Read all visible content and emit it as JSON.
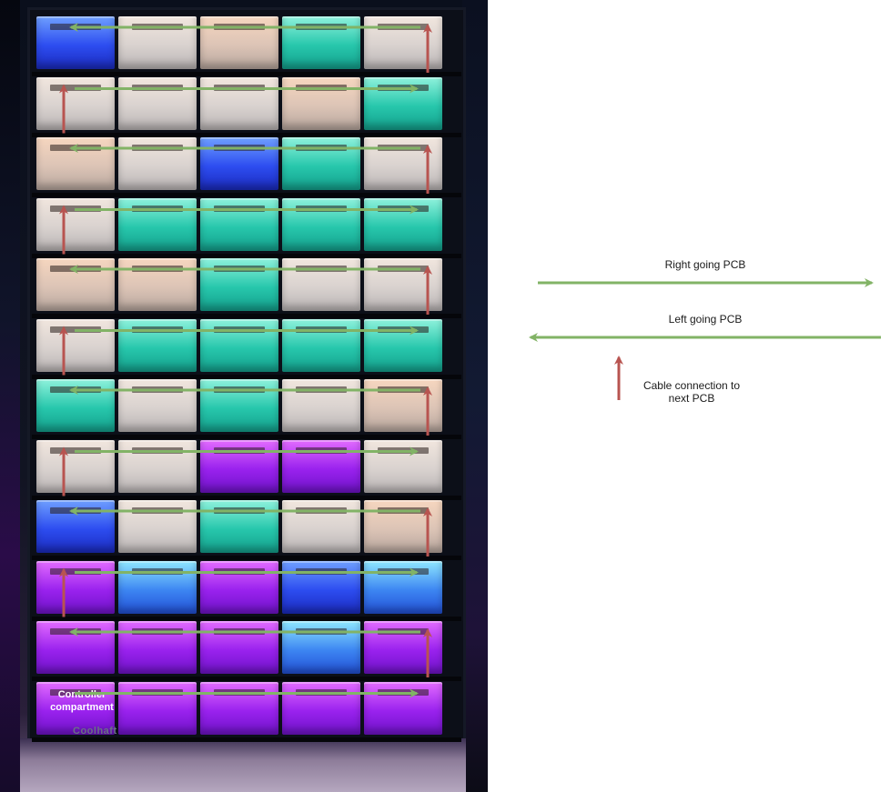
{
  "photo": {
    "brand_text": "Coolhaft",
    "controller_label_line1": "Controller",
    "controller_label_line2": "compartment"
  },
  "legend": {
    "right_label": "Right going PCB",
    "left_label": "Left going PCB",
    "cable_label_line1": "Cable connection to",
    "cable_label_line2": "next PCB"
  },
  "colors": {
    "green_arrow": "#82b366",
    "red_arrow": "#b85450"
  },
  "rows": [
    {
      "direction": "left",
      "drawers": [
        "blue",
        "white",
        "warm",
        "teal",
        "white"
      ],
      "cable_side": "right"
    },
    {
      "direction": "right",
      "drawers": [
        "white",
        "white",
        "white",
        "warm",
        "teal"
      ],
      "cable_side": "left"
    },
    {
      "direction": "left",
      "drawers": [
        "warm",
        "white",
        "blue",
        "teal",
        "white"
      ],
      "cable_side": "right"
    },
    {
      "direction": "right",
      "drawers": [
        "white",
        "teal",
        "teal",
        "teal",
        "teal"
      ],
      "cable_side": "left"
    },
    {
      "direction": "left",
      "drawers": [
        "warm",
        "warm",
        "teal",
        "white",
        "white"
      ],
      "cable_side": "right"
    },
    {
      "direction": "right",
      "drawers": [
        "white",
        "teal",
        "teal",
        "teal",
        "teal"
      ],
      "cable_side": "left"
    },
    {
      "direction": "left",
      "drawers": [
        "teal",
        "white",
        "teal",
        "white",
        "warm"
      ],
      "cable_side": "right"
    },
    {
      "direction": "right",
      "drawers": [
        "white",
        "white",
        "purple",
        "purple",
        "white"
      ],
      "cable_side": "left"
    },
    {
      "direction": "left",
      "drawers": [
        "blue",
        "white",
        "teal",
        "white",
        "warm"
      ],
      "cable_side": "right"
    },
    {
      "direction": "right",
      "drawers": [
        "purple",
        "cyan",
        "purple",
        "blue",
        "cyan"
      ],
      "cable_side": "left"
    },
    {
      "direction": "left",
      "drawers": [
        "purple",
        "purple",
        "purple",
        "cyan",
        "purple"
      ],
      "cable_side": "right"
    },
    {
      "direction": "right",
      "drawers": [
        "purple",
        "purple",
        "purple",
        "purple",
        "purple"
      ],
      "cable_side": "none"
    }
  ]
}
